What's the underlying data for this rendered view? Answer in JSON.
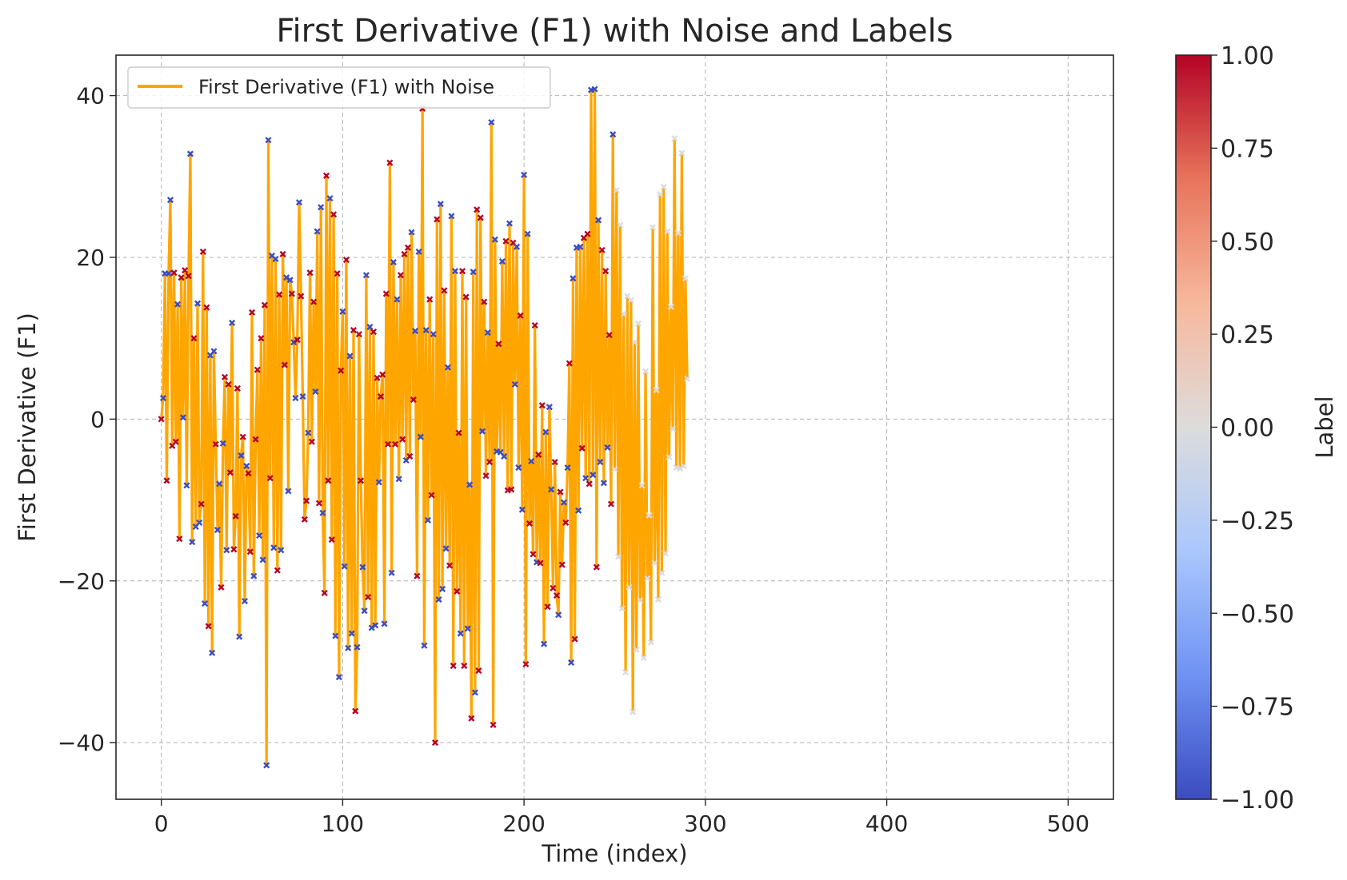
{
  "chart_data": {
    "type": "line",
    "title": "First Derivative (F1) with Noise and Labels",
    "xlabel": "Time (index)",
    "ylabel": "First Derivative (F1)",
    "xlim": [
      -25,
      525
    ],
    "ylim": [
      -47,
      45
    ],
    "x_ticks": [
      0,
      100,
      200,
      300,
      400,
      500
    ],
    "x_tick_labels": [
      "0",
      "100",
      "200",
      "300",
      "400",
      "500"
    ],
    "y_ticks": [
      -40,
      -20,
      0,
      20,
      40
    ],
    "y_tick_labels": [
      "−40",
      "−20",
      "0",
      "20",
      "40"
    ],
    "grid": true,
    "legend": {
      "placement": "upper-left",
      "entries": [
        "First Derivative (F1) with Noise"
      ]
    },
    "series": [
      {
        "name": "First Derivative (F1) with Noise",
        "color": "#FFA500",
        "x_start": 0,
        "x_step": 1,
        "values": [
          0.0,
          2.6,
          18.0,
          -7.6,
          18.0,
          27.1,
          -3.3,
          18.1,
          -2.8,
          14.2,
          -14.8,
          17.5,
          0.2,
          18.4,
          -8.2,
          17.7,
          32.8,
          -15.2,
          10.0,
          -13.3,
          14.3,
          -12.8,
          -10.5,
          20.7,
          -22.8,
          13.8,
          -25.6,
          7.9,
          -28.9,
          8.4,
          -3.1,
          -13.7,
          -8.0,
          -20.8,
          -3.0,
          5.2,
          -16.2,
          4.3,
          -6.6,
          11.9,
          -16.1,
          -12.0,
          3.8,
          -26.9,
          -4.5,
          -2.2,
          -22.5,
          -5.8,
          -6.7,
          -16.4,
          13.2,
          -19.4,
          -2.5,
          6.1,
          -14.4,
          10.0,
          -17.4,
          14.1,
          -42.8,
          34.5,
          -7.3,
          20.2,
          -15.9,
          19.8,
          -18.7,
          15.4,
          -16.2,
          20.4,
          6.7,
          17.5,
          -8.9,
          17.2,
          15.5,
          9.5,
          2.6,
          9.8,
          26.8,
          15.2,
          2.8,
          -12.4,
          -10.1,
          -1.7,
          18.1,
          -2.8,
          14.5,
          3.4,
          23.2,
          -10.4,
          26.2,
          -11.6,
          -21.5,
          30.1,
          -7.6,
          27.3,
          -14.9,
          25.3,
          -26.8,
          18.0,
          -31.9,
          6.0,
          13.3,
          -18.2,
          19.7,
          -28.3,
          7.8,
          -26.5,
          11.0,
          -36.1,
          -28.2,
          10.5,
          -7.6,
          -18.3,
          -23.7,
          17.8,
          -22.0,
          11.4,
          -25.8,
          10.8,
          -25.5,
          5.1,
          -7.8,
          2.8,
          5.5,
          -25.3,
          15.5,
          -3.1,
          31.7,
          -19.0,
          19.4,
          -3.1,
          14.8,
          -7.4,
          17.8,
          -2.5,
          20.4,
          -5.1,
          21.2,
          -4.6,
          23.1,
          2.4,
          10.9,
          -19.4,
          20.7,
          -2.2,
          38.4,
          -28.0,
          11.0,
          -12.5,
          14.8,
          -9.4,
          10.5,
          -40.0,
          24.7,
          -22.3,
          26.6,
          -21.0,
          15.9,
          -16.0,
          6.4,
          -18.1,
          25.1,
          -30.5,
          18.3,
          -21.3,
          -1.7,
          -26.5,
          18.3,
          -30.5,
          15.1,
          -25.9,
          -8.1,
          -37.0,
          18.2,
          -33.8,
          25.9,
          -31.1,
          24.9,
          -1.5,
          14.5,
          -7.0,
          10.7,
          -5.3,
          36.7,
          -37.8,
          22.2,
          -4.0,
          9.3,
          -4.1,
          19.5,
          -4.6,
          22.0,
          -8.8,
          24.2,
          -8.7,
          21.8,
          4.3,
          21.3,
          -6.0,
          12.8,
          -11.2,
          30.2,
          -30.3,
          22.9,
          -12.9,
          -5.2,
          -16.7,
          11.6,
          -17.7,
          -4.4,
          -17.8,
          1.7,
          -27.8,
          -1.6,
          -23.2,
          1.5,
          -8.7,
          -20.9,
          -5.3,
          -21.8,
          -24.2,
          -9.0,
          -18.0,
          -10.3,
          -12.8,
          -6.0,
          6.9,
          -30.1,
          17.4,
          -27.2,
          21.2,
          -11.3,
          21.3,
          -3.6,
          22.4,
          -7.3,
          22.9,
          -8.0,
          40.7,
          -6.9,
          40.8,
          -18.3,
          24.6,
          -5.3,
          20.9,
          -7.9,
          18.3,
          -3.5,
          10.4,
          -10.5,
          35.2,
          -6.2,
          28.3,
          -17.0,
          24.0,
          -23.4,
          13.0,
          -31.3,
          15.2,
          -20.8,
          14.7,
          -36.2,
          9.5,
          -28.5,
          11.8,
          -22.4,
          -8.2,
          -29.5,
          5.9,
          -19.7,
          -11.9,
          -27.6,
          23.7,
          -17.8,
          3.6,
          -22.3,
          27.8,
          -19.0,
          28.7,
          -16.6,
          23.2,
          -4.7,
          13.9,
          -1.2,
          34.7,
          -6.0,
          23.0,
          -6.1,
          32.9,
          -5.8,
          17.4,
          5.0
        ]
      }
    ],
    "colorbar": {
      "label": "Label",
      "min": -1.0,
      "max": 1.0,
      "ticks": [
        1.0,
        0.75,
        0.5,
        0.25,
        0.0,
        -0.25,
        -0.5,
        -0.75,
        -1.0
      ],
      "tick_labels": [
        "1.00",
        "0.75",
        "0.50",
        "0.25",
        "0.00",
        "−0.25",
        "−0.50",
        "−0.75",
        "−1.00"
      ],
      "colormap": "coolwarm",
      "colormap_stops": [
        "#3b4cc0",
        "#6f92f3",
        "#aac7fd",
        "#dddcdc",
        "#f7b89c",
        "#e7745b",
        "#b40426"
      ]
    }
  }
}
